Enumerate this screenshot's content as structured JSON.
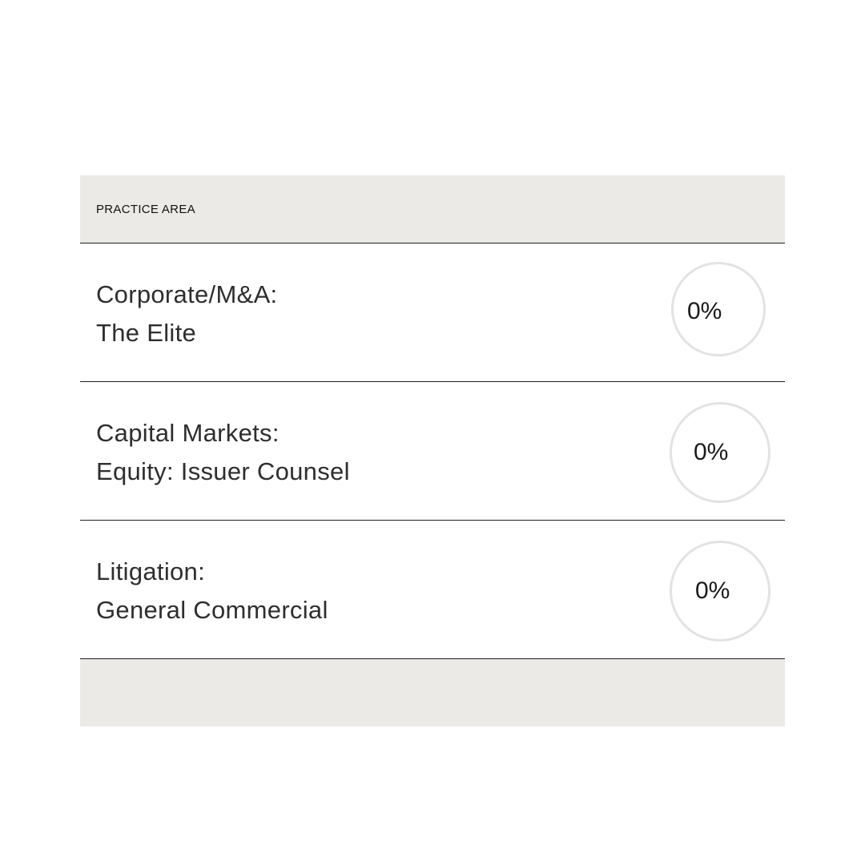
{
  "table": {
    "header_label": "PRACTICE AREA",
    "rows": [
      {
        "line1": "Corporate/M&A:",
        "line2": "The Elite",
        "value": "0%",
        "progress": 0
      },
      {
        "line1": "Capital Markets:",
        "line2": "Equity: Issuer Counsel",
        "value": "0%",
        "progress": 0
      },
      {
        "line1": "Litigation:",
        "line2": "General Commercial",
        "value": "0%",
        "progress": 0
      }
    ]
  },
  "colors": {
    "header_bg": "#ebeae7",
    "ring": "#e3e3e3",
    "divider": "#1f1f1f"
  }
}
